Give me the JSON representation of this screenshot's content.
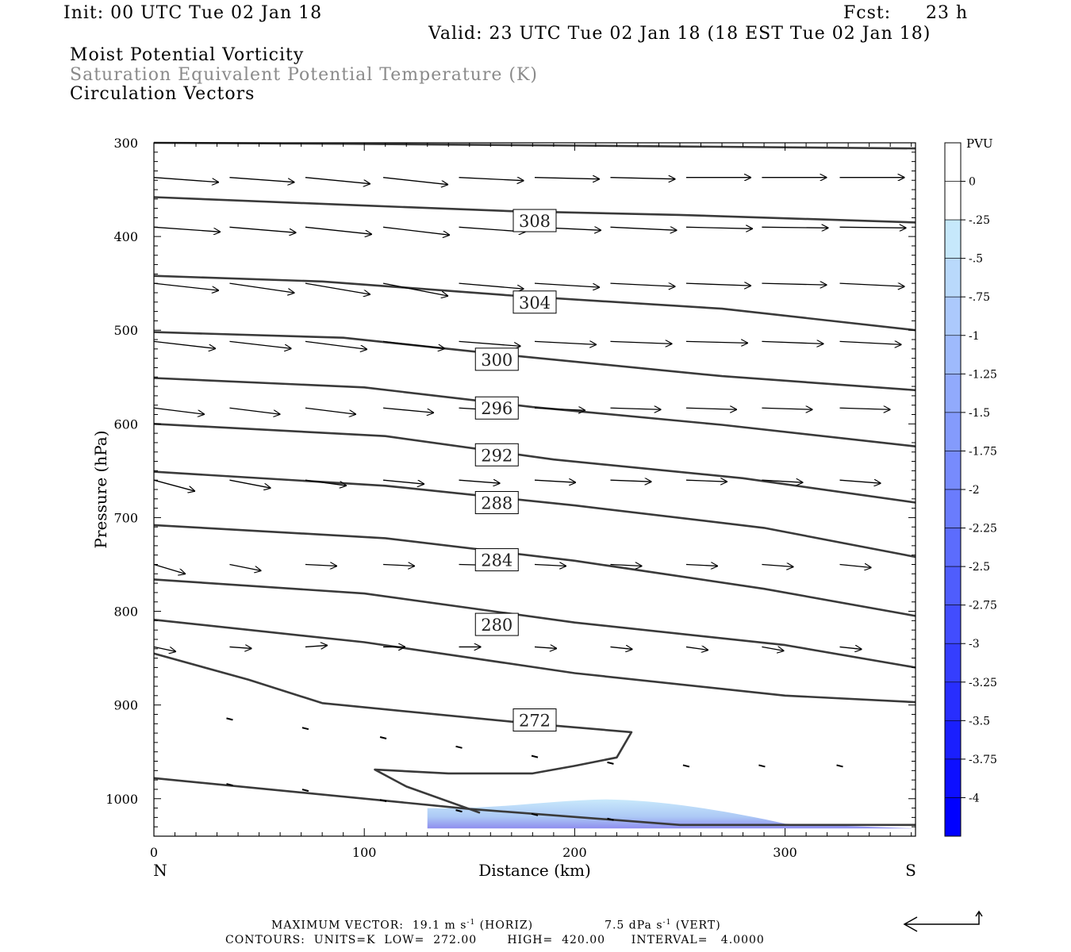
{
  "header": {
    "init": "Init: 00 UTC Tue 02 Jan 18",
    "fcst_label": "Fcst:",
    "fcst_value": "23 h",
    "valid": "Valid: 23 UTC Tue 02 Jan 18 (18 EST Tue 02 Jan 18)"
  },
  "fields": {
    "line1": "Moist Potential Vorticity",
    "line2": "Saturation Equivalent Potential Temperature (K)",
    "line3": "Circulation Vectors"
  },
  "footer": {
    "max_vector": "MAXIMUM VECTOR:  19.1 m s",
    "horiz": "(HORIZ)",
    "vert_val": "7.5 dPa s",
    "vert": "(VERT)",
    "contours": "CONTOURS:  UNITS=K  LOW=  272.00       HIGH=  420.00      INTERVAL=   4.0000"
  },
  "colors": {
    "contour": "#3a3a3a",
    "pvu_light": "#c6e8fb",
    "pvu_dark": "#0000ff"
  },
  "chart_data": {
    "type": "cross-section",
    "xlabel": "Distance (km)",
    "ylabel": "Pressure (hPa)",
    "xlim": [
      0,
      362
    ],
    "ylim": [
      300,
      1040
    ],
    "y_scale": "linear (inverted)",
    "x_ticks": [
      0,
      100,
      200,
      300
    ],
    "y_ticks": [
      300,
      400,
      500,
      600,
      700,
      800,
      900,
      1000
    ],
    "left_end_label": "N",
    "right_end_label": "S",
    "contour_labels": [
      {
        "value": "308",
        "x": 181,
        "p": 383
      },
      {
        "value": "304",
        "x": 181,
        "p": 470
      },
      {
        "value": "300",
        "x": 163,
        "p": 531
      },
      {
        "value": "296",
        "x": 163,
        "p": 583
      },
      {
        "value": "292",
        "x": 163,
        "p": 633
      },
      {
        "value": "288",
        "x": 163,
        "p": 684
      },
      {
        "value": "284",
        "x": 163,
        "p": 745
      },
      {
        "value": "280",
        "x": 163,
        "p": 814
      },
      {
        "value": "272",
        "x": 181,
        "p": 916
      }
    ],
    "isentropes": [
      [
        [
          0,
          300
        ],
        [
          90,
          301
        ],
        [
          200,
          303
        ],
        [
          362,
          306
        ]
      ],
      [
        [
          0,
          358
        ],
        [
          100,
          367
        ],
        [
          170,
          373
        ],
        [
          250,
          377
        ],
        [
          362,
          385
        ]
      ],
      [
        [
          0,
          442
        ],
        [
          80,
          448
        ],
        [
          170,
          463
        ],
        [
          270,
          477
        ],
        [
          362,
          500
        ]
      ],
      [
        [
          0,
          502
        ],
        [
          90,
          508
        ],
        [
          170,
          527
        ],
        [
          270,
          549
        ],
        [
          362,
          564
        ]
      ],
      [
        [
          0,
          551
        ],
        [
          100,
          561
        ],
        [
          180,
          582
        ],
        [
          270,
          601
        ],
        [
          362,
          624
        ]
      ],
      [
        [
          0,
          600
        ],
        [
          110,
          613
        ],
        [
          190,
          638
        ],
        [
          280,
          658
        ],
        [
          362,
          684
        ]
      ],
      [
        [
          0,
          651
        ],
        [
          110,
          666
        ],
        [
          200,
          687
        ],
        [
          290,
          711
        ],
        [
          362,
          742
        ]
      ],
      [
        [
          0,
          708
        ],
        [
          110,
          722
        ],
        [
          200,
          746
        ],
        [
          290,
          776
        ],
        [
          362,
          805
        ]
      ],
      [
        [
          0,
          766
        ],
        [
          100,
          781
        ],
        [
          200,
          812
        ],
        [
          300,
          836
        ],
        [
          362,
          860
        ]
      ],
      [
        [
          0,
          809
        ],
        [
          100,
          833
        ],
        [
          200,
          866
        ],
        [
          300,
          890
        ],
        [
          362,
          897
        ]
      ],
      [
        [
          0,
          978
        ],
        [
          150,
          1011
        ],
        [
          250,
          1028
        ],
        [
          362,
          1028
        ]
      ],
      [
        [
          0,
          845
        ],
        [
          45,
          873
        ],
        [
          80,
          898
        ],
        [
          180,
          920
        ],
        [
          227,
          929
        ],
        [
          220,
          956
        ],
        [
          200,
          965
        ],
        [
          180,
          973
        ],
        [
          140,
          973
        ],
        [
          105,
          969
        ],
        [
          120,
          987
        ],
        [
          155,
          1015
        ]
      ]
    ],
    "pvu_colorbar": {
      "unit": "PVU",
      "ticks": [
        "0",
        "-.25",
        "-.5",
        "-.75",
        "-1",
        "-1.25",
        "-1.5",
        "-1.75",
        "-2",
        "-2.25",
        "-2.5",
        "-2.75",
        "-3",
        "-3.25",
        "-3.5",
        "-3.75",
        "-4"
      ]
    },
    "pvu_region": {
      "x_range": [
        130,
        362
      ],
      "p_range": [
        1005,
        1030
      ],
      "min_pvu": -1.5
    }
  }
}
